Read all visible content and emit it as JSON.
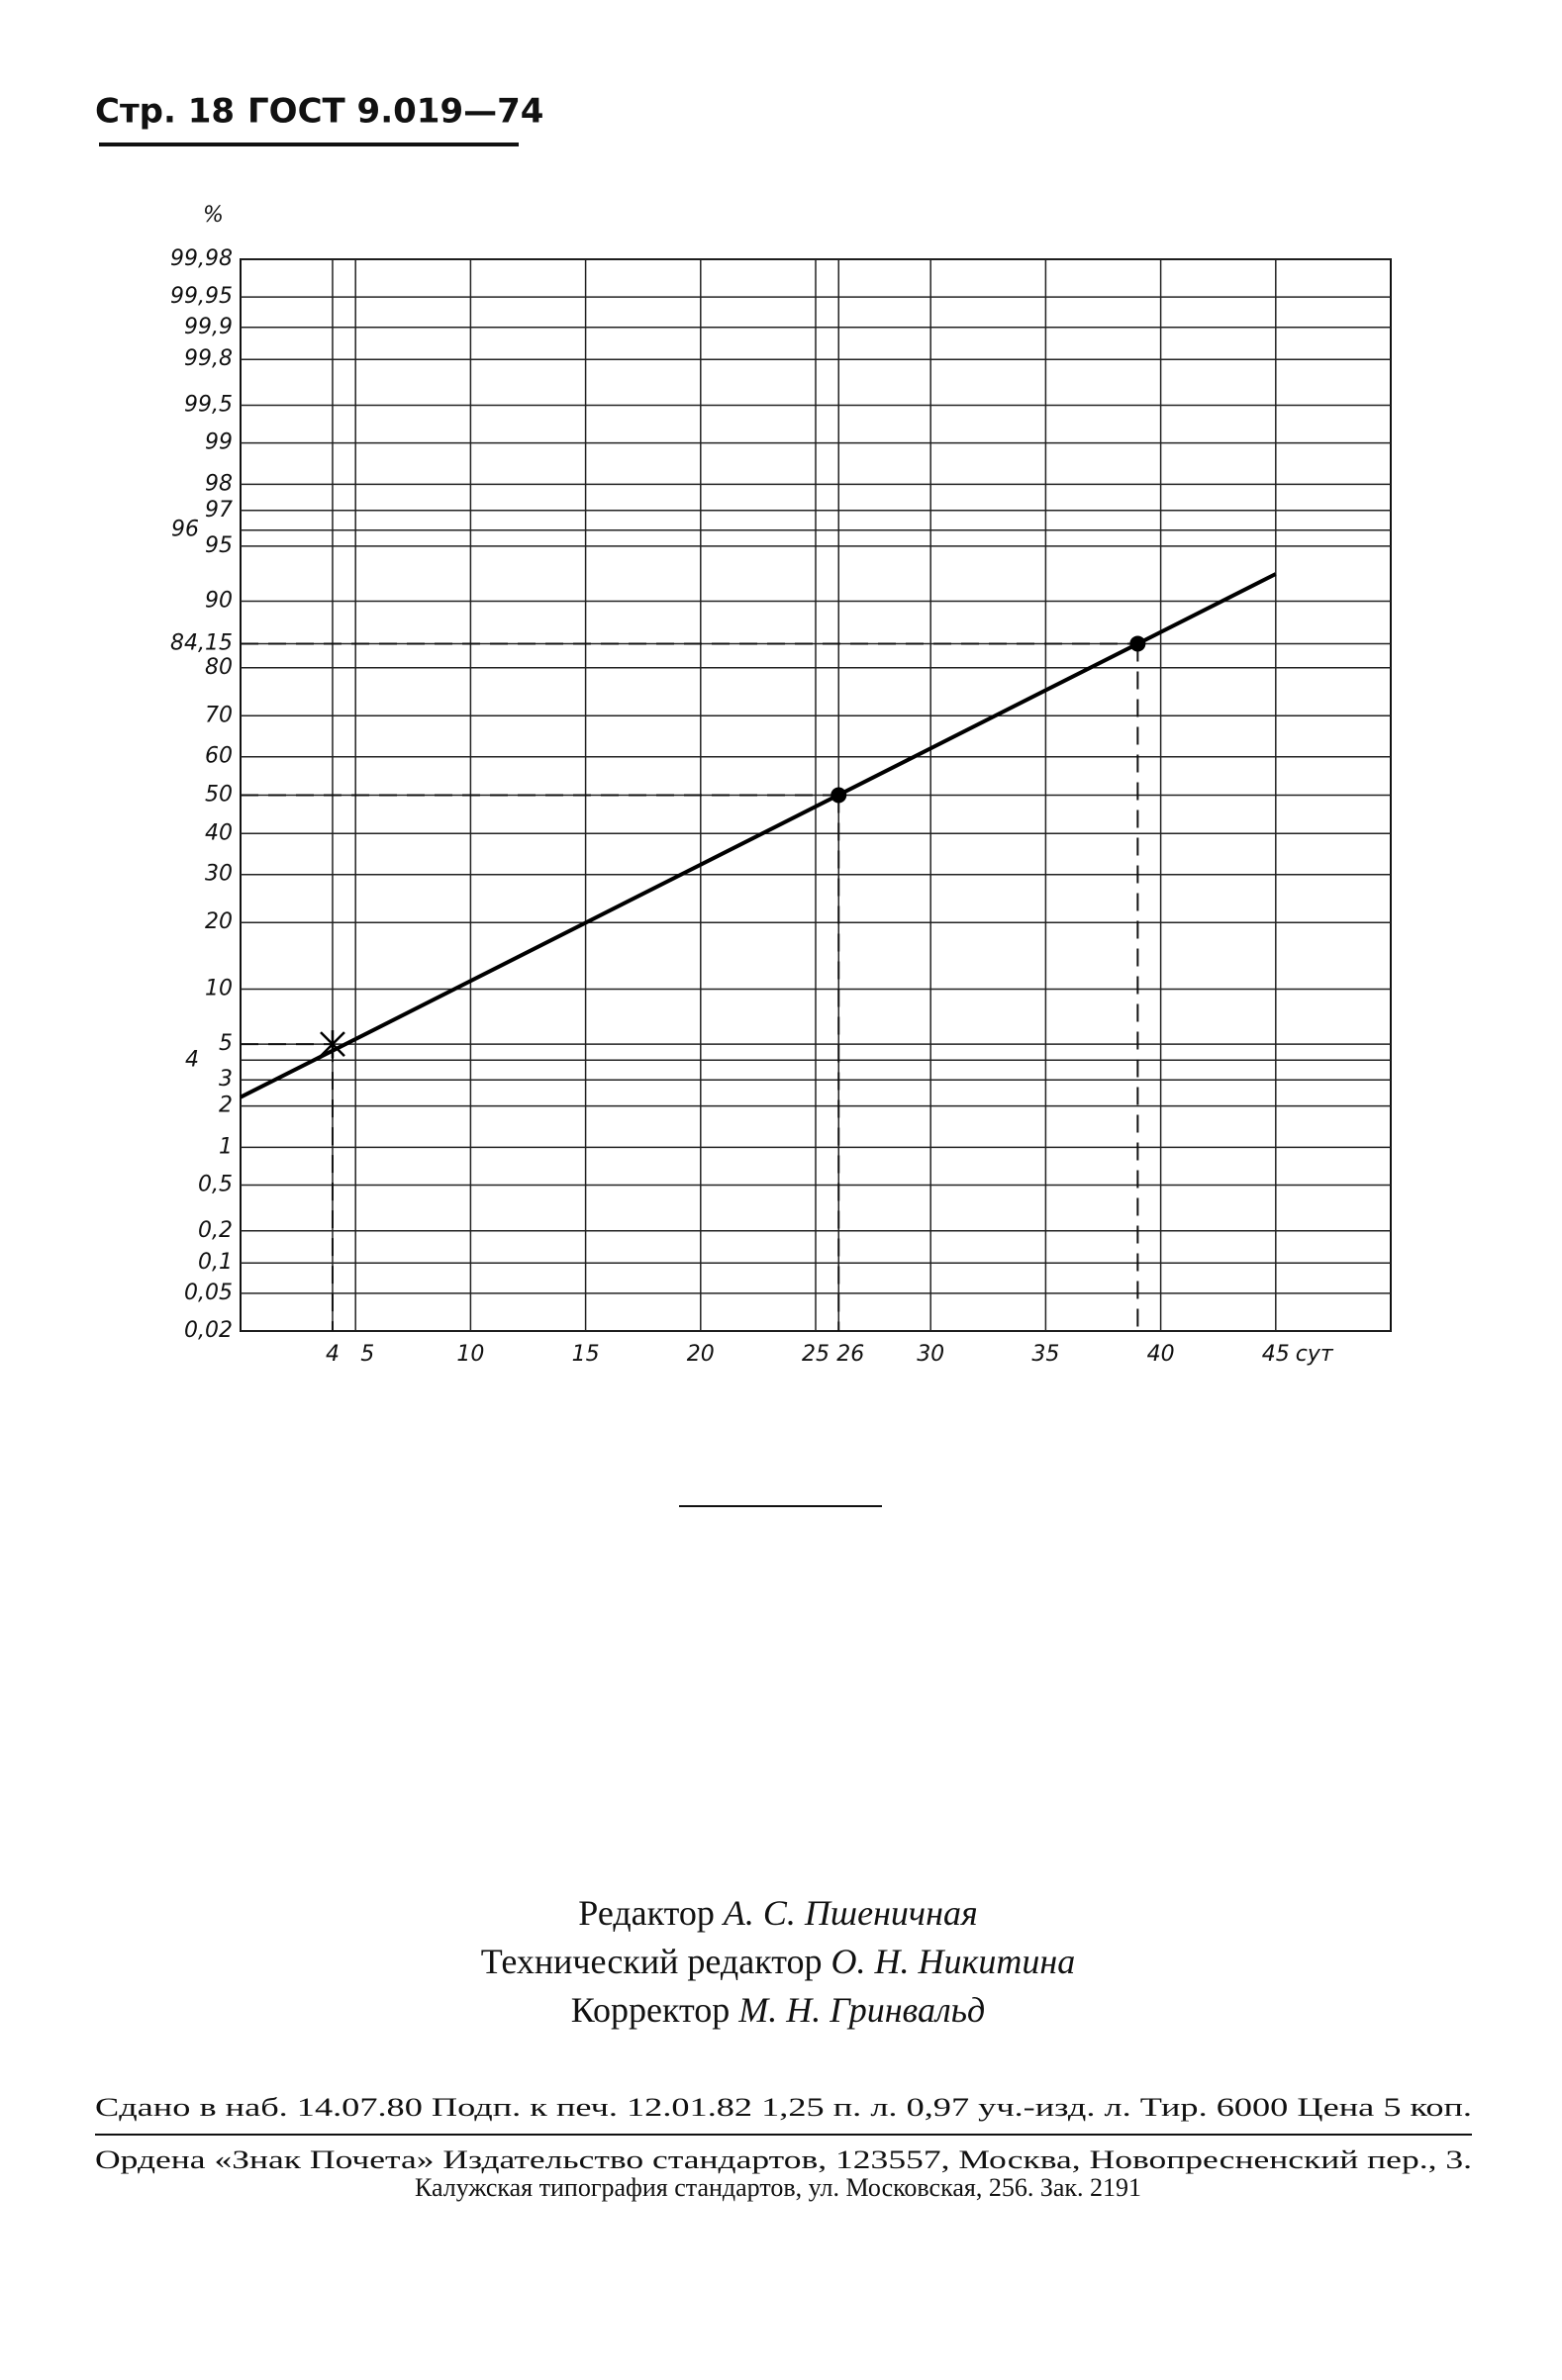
{
  "header": {
    "page": "Стр. 18",
    "standard": "ГОСТ 9.019—74"
  },
  "chart_data": {
    "type": "probability",
    "y_unit_label": "%",
    "x_unit_label": "сут",
    "xlim": [
      0,
      50
    ],
    "ylim": [
      0.02,
      99.98
    ],
    "xticks": [
      4,
      5,
      10,
      15,
      20,
      25,
      26,
      30,
      35,
      40,
      45
    ],
    "yticks": [
      {
        "value": 99.98,
        "label": "99,98"
      },
      {
        "value": 99.95,
        "label": "99,95"
      },
      {
        "value": 99.9,
        "label": "99,9"
      },
      {
        "value": 99.8,
        "label": "99,8"
      },
      {
        "value": 99.5,
        "label": "99,5"
      },
      99,
      98,
      97,
      96,
      95,
      90,
      {
        "value": 84.15,
        "label": "84,15"
      },
      80,
      70,
      60,
      50,
      40,
      30,
      20,
      10,
      5,
      4,
      3,
      2,
      1,
      {
        "value": 0.5,
        "label": "0,5"
      },
      {
        "value": 0.2,
        "label": "0,2"
      },
      {
        "value": 0.1,
        "label": "0,1"
      },
      {
        "value": 0.05,
        "label": "0,05"
      },
      {
        "value": 0.02,
        "label": "0,02"
      }
    ],
    "grid": true,
    "fit_line": {
      "x": [
        0,
        45
      ],
      "values": [
        2.3,
        92.8
      ],
      "color": "#000000"
    },
    "points": {
      "x": [
        4,
        26,
        39
      ],
      "values": [
        5,
        50,
        84.15
      ],
      "markers": [
        "x",
        "o",
        "o"
      ],
      "color": "#000000"
    }
  },
  "imprint": {
    "credits": [
      {
        "role": "Редактор",
        "name": "А. С. Пшеничная"
      },
      {
        "role": "Технический редактор",
        "name": "О. Н. Никитина"
      },
      {
        "role": "Корректор",
        "name": "М. Н. Гринвальд"
      }
    ],
    "print_info": "Сдано в наб. 14.07.80 Подп. к печ. 12.01.82 1,25 п. л. 0,97 уч.-изд. л. Тир. 6000 Цена 5 коп.",
    "publisher": [
      "Ордена «Знак Почета» Издательство стандартов, 123557, Москва, Новопресненский пер., 3.",
      "Калужская типография стандартов, ул. Московская, 256. Зак. 2191"
    ]
  }
}
